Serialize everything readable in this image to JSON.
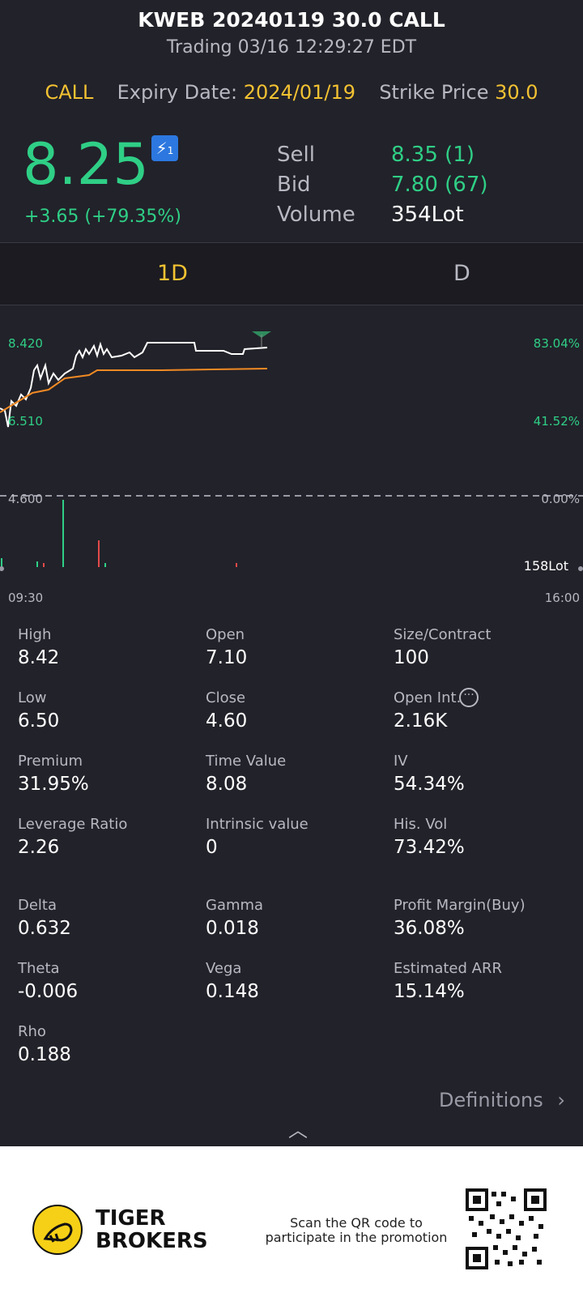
{
  "header": {
    "title": "KWEB 20240119 30.0 CALL",
    "status": "Trading 03/16 12:29:27 EDT",
    "type": "CALL",
    "expiry_label": "Expiry Date:",
    "expiry_value": "2024/01/19",
    "strike_label": "Strike Price",
    "strike_value": "30.0"
  },
  "quote": {
    "price": "8.25",
    "lightning_badge": "1",
    "change": "+3.65 (+79.35%)",
    "sell_label": "Sell",
    "sell_value": "8.35 (1)",
    "bid_label": "Bid",
    "bid_value": "7.80 (67)",
    "volume_label": "Volume",
    "volume_value": "354Lot"
  },
  "tabs": [
    {
      "label": "1D",
      "active": true
    },
    {
      "label": "D",
      "active": false
    }
  ],
  "chart": {
    "y_high": "8.420",
    "y_low": "6.510",
    "y_base": "4.600",
    "pct_high": "83.04%",
    "pct_low": "41.52%",
    "pct_base": "0.00%",
    "volume_label": "158Lot",
    "time_start": "09:30",
    "time_end": "16:00"
  },
  "chart_data": {
    "type": "line",
    "x_range": [
      "09:30",
      "16:00"
    ],
    "ylim": [
      4.6,
      8.42
    ],
    "series": [],
    "volume_max": "158Lot"
  },
  "stats": {
    "high_label": "High",
    "high_value": "8.42",
    "open_label": "Open",
    "open_value": "7.10",
    "size_label": "Size/Contract",
    "size_value": "100",
    "low_label": "Low",
    "low_value": "6.50",
    "close_label": "Close",
    "close_value": "4.60",
    "openint_label": "Open Int.",
    "openint_value": "2.16K",
    "premium_label": "Premium",
    "premium_value": "31.95%",
    "timevalue_label": "Time Value",
    "timevalue_value": "8.08",
    "iv_label": "IV",
    "iv_value": "54.34%",
    "leverage_label": "Leverage Ratio",
    "leverage_value": "2.26",
    "intrinsic_label": "Intrinsic value",
    "intrinsic_value": "0",
    "hisvol_label": "His. Vol",
    "hisvol_value": "73.42%",
    "delta_label": "Delta",
    "delta_value": "0.632",
    "gamma_label": "Gamma",
    "gamma_value": "0.018",
    "profit_label": "Profit Margin(Buy)",
    "profit_value": "36.08%",
    "theta_label": "Theta",
    "theta_value": "-0.006",
    "vega_label": "Vega",
    "vega_value": "0.148",
    "arr_label": "Estimated ARR",
    "arr_value": "15.14%",
    "rho_label": "Rho",
    "rho_value": "0.188"
  },
  "definitions_label": "Definitions",
  "footer": {
    "brand_line1": "TIGER",
    "brand_line2": "BROKERS",
    "promo_line1": "Scan the QR code to",
    "promo_line2": "participate in the promotion"
  },
  "colors": {
    "background": "#22222a",
    "accent_yellow": "#f3c232",
    "up_green": "#2fcf86",
    "line_white": "#ffffff",
    "avg_orange": "#f08a24"
  }
}
